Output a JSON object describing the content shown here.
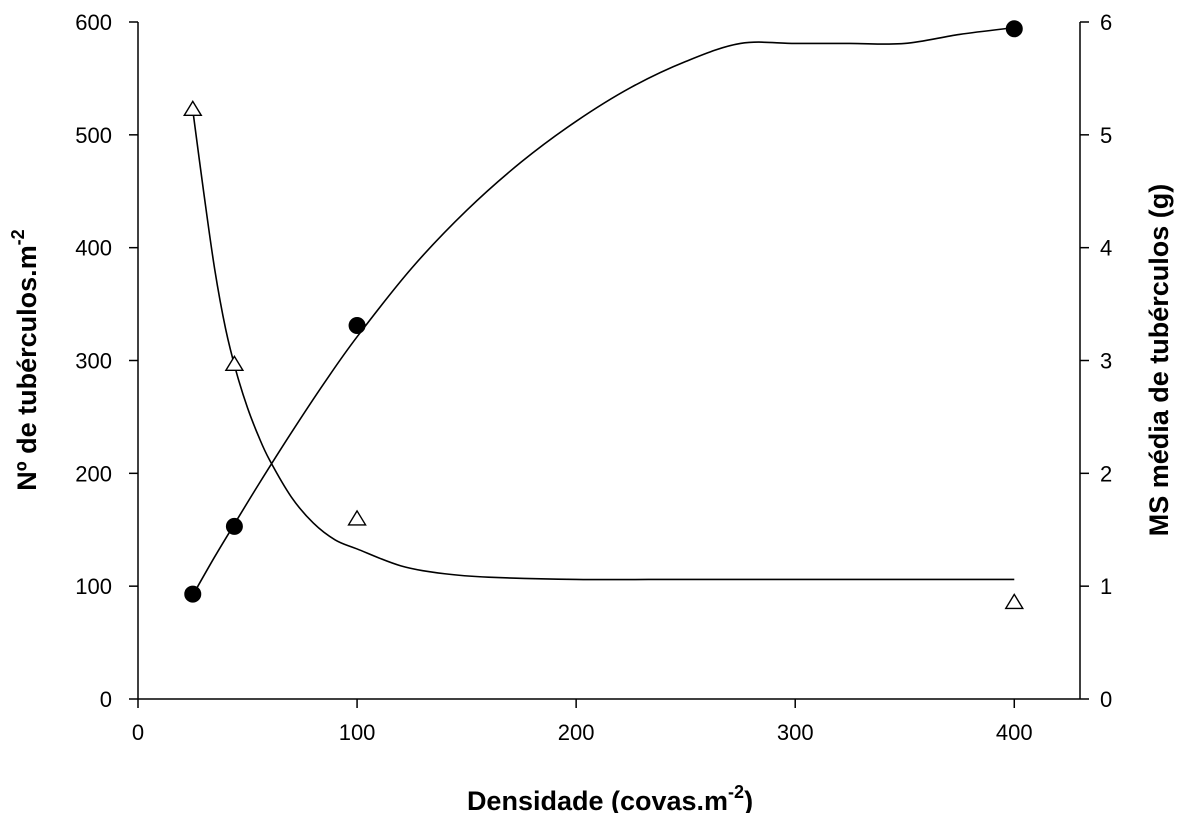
{
  "chart_data": {
    "type": "scatter",
    "xlabel": {
      "main": "Densidade (covas.m",
      "sup": "-2",
      "end": ")"
    },
    "ylabel_left": {
      "main": "Nº de tubérculos.m",
      "sup": "-2"
    },
    "ylabel_right": "MS média de tubérculos (g)",
    "xlim": [
      0,
      430
    ],
    "ylim_left": [
      0,
      600
    ],
    "ylim_right": [
      0,
      6
    ],
    "x_ticks": [
      0,
      100,
      200,
      300,
      400
    ],
    "y_left_ticks": [
      0,
      100,
      200,
      300,
      400,
      500,
      600
    ],
    "y_right_ticks": [
      0,
      1,
      2,
      3,
      4,
      5,
      6
    ],
    "series": [
      {
        "axis": "left",
        "marker": "filled-circle",
        "x": [
          25,
          44,
          100,
          400
        ],
        "y": [
          93,
          153,
          331,
          594
        ]
      },
      {
        "axis": "right",
        "marker": "open-triangle",
        "x": [
          25,
          44,
          100,
          400
        ],
        "y": [
          5.22,
          2.96,
          1.59,
          0.85
        ]
      }
    ],
    "fit_curves": [
      {
        "axis": "left",
        "x": [
          25,
          35,
          44,
          55,
          70,
          85,
          100,
          125,
          150,
          175,
          200,
          225,
          250,
          275,
          300,
          325,
          350,
          375,
          400
        ],
        "y": [
          92,
          126,
          155,
          190,
          236,
          280,
          321,
          382,
          433,
          476,
          512,
          542,
          565,
          581,
          560,
          572,
          581,
          589,
          595
        ]
      },
      {
        "axis": "right",
        "x": [
          25,
          30,
          35,
          40,
          45,
          50,
          55,
          60,
          70,
          80,
          90,
          100,
          120,
          140,
          160,
          200,
          250,
          300,
          350,
          400
        ],
        "y": [
          5.22,
          4.49,
          3.81,
          3.28,
          2.89,
          2.58,
          2.33,
          2.12,
          1.79,
          1.56,
          1.41,
          1.33,
          1.18,
          1.11,
          1.08,
          1.06,
          1.06,
          1.06,
          1.06,
          1.06
        ]
      }
    ],
    "grid": false,
    "legend": "none"
  }
}
